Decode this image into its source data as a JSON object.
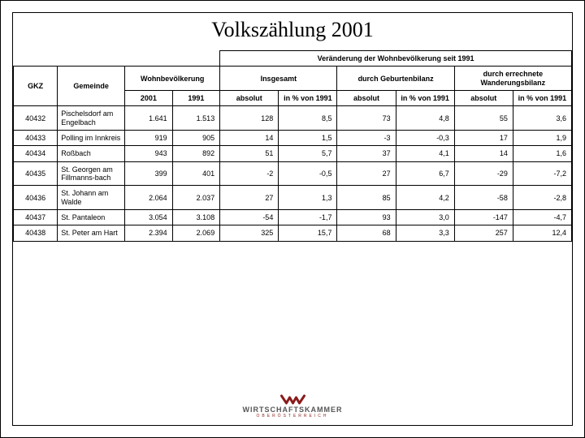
{
  "title": "Volkszählung 2001",
  "subheader": "Veränderung der Wohnbevölkerung seit 1991",
  "headers": {
    "gkz": "GKZ",
    "gemeinde": "Gemeinde",
    "wohnbev": "Wohnbevölkerung",
    "insgesamt": "Insgesamt",
    "geburten": "durch Geburtenbilanz",
    "wanderung": "durch errechnete Wanderungsbilanz",
    "y2001": "2001",
    "y1991": "1991",
    "absolut": "absolut",
    "pct": "in % von 1991"
  },
  "rows": [
    {
      "gkz": "40432",
      "gem": "Pischelsdorf am Engelbach",
      "p2001": "1.641",
      "p1991": "1.513",
      "ia": "128",
      "ip": "8,5",
      "ga": "73",
      "gp": "4,8",
      "wa": "55",
      "wp": "3,6"
    },
    {
      "gkz": "40433",
      "gem": "Polling im Innkreis",
      "p2001": "919",
      "p1991": "905",
      "ia": "14",
      "ip": "1,5",
      "ga": "-3",
      "gp": "-0,3",
      "wa": "17",
      "wp": "1,9"
    },
    {
      "gkz": "40434",
      "gem": "Roßbach",
      "p2001": "943",
      "p1991": "892",
      "ia": "51",
      "ip": "5,7",
      "ga": "37",
      "gp": "4,1",
      "wa": "14",
      "wp": "1,6"
    },
    {
      "gkz": "40435",
      "gem": "St. Georgen am Fillmanns-bach",
      "p2001": "399",
      "p1991": "401",
      "ia": "-2",
      "ip": "-0,5",
      "ga": "27",
      "gp": "6,7",
      "wa": "-29",
      "wp": "-7,2"
    },
    {
      "gkz": "40436",
      "gem": "St. Johann am Walde",
      "p2001": "2.064",
      "p1991": "2.037",
      "ia": "27",
      "ip": "1,3",
      "ga": "85",
      "gp": "4,2",
      "wa": "-58",
      "wp": "-2,8"
    },
    {
      "gkz": "40437",
      "gem": "St. Pantaleon",
      "p2001": "3.054",
      "p1991": "3.108",
      "ia": "-54",
      "ip": "-1,7",
      "ga": "93",
      "gp": "3,0",
      "wa": "-147",
      "wp": "-4,7"
    },
    {
      "gkz": "40438",
      "gem": "St. Peter am Hart",
      "p2001": "2.394",
      "p1991": "2.069",
      "ia": "325",
      "ip": "15,7",
      "ga": "68",
      "gp": "3,3",
      "wa": "257",
      "wp": "12,4"
    }
  ],
  "logo": {
    "title": "WIRTSCHAFTSKAMMER",
    "sub": "OBERÖSTERREICH",
    "shape_color": "#8b1c1c",
    "accent_color": "#555555"
  },
  "colors": {
    "border": "#000000",
    "text": "#000000",
    "background": "#ffffff"
  },
  "typography": {
    "title_font": "Garamond",
    "title_size_pt": 20,
    "table_font": "Arial",
    "table_size_pt": 7
  }
}
